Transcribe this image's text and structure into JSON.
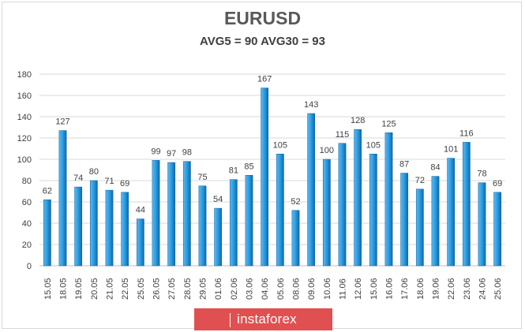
{
  "chart_data": {
    "type": "bar",
    "title": "EURUSD",
    "subtitle": "AVG5 = 90 AVG30 = 93",
    "xlabel": "",
    "ylabel": "",
    "ylim": [
      0,
      180
    ],
    "yticks": [
      0,
      20,
      40,
      60,
      80,
      100,
      120,
      140,
      160,
      180
    ],
    "grid": true,
    "categories": [
      "15.05",
      "18.05",
      "19.05",
      "20.05",
      "21.05",
      "22.05",
      "25.05",
      "26.05",
      "27.05",
      "28.05",
      "29.05",
      "01.06",
      "02.06",
      "03.06",
      "04.06",
      "05.06",
      "08.06",
      "09.06",
      "10.06",
      "11.06",
      "12.06",
      "15.06",
      "16.06",
      "17.06",
      "18.06",
      "19.06",
      "22.06",
      "23.06",
      "24.06",
      "25.06"
    ],
    "values": [
      62,
      127,
      74,
      80,
      71,
      69,
      44,
      99,
      97,
      98,
      75,
      54,
      81,
      85,
      167,
      105,
      52,
      143,
      100,
      115,
      128,
      105,
      125,
      87,
      72,
      84,
      101,
      116,
      78,
      69
    ],
    "bar_color": "#1f8fd6"
  },
  "watermark": {
    "text": "instaforex"
  }
}
